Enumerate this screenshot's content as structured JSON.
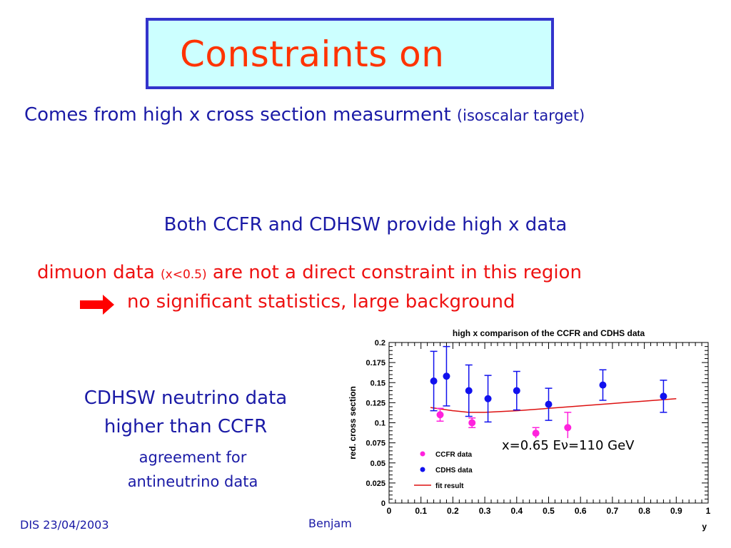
{
  "slide": {
    "title": "Constraints on",
    "subtitle_main": "Comes from high x cross section measurment ",
    "subtitle_small": "(isoscalar target)",
    "both_line": "Both CCFR and CDHSW provide high x data",
    "dimuon_pre": "dimuon data ",
    "dimuon_small": "(x<0.5)",
    "dimuon_post": " are not a direct constraint in this region",
    "no_significant": "no significant statistics, large background",
    "cdhsw_line1": "CDHSW neutrino data",
    "cdhsw_line2": "higher than CCFR",
    "agree_line1": "agreement for",
    "agree_line2": "antineutrino data",
    "footer_date": "DIS 23/04/2003",
    "footer_author": "Benjam",
    "colors": {
      "title": "#ff3300",
      "title_box_bg": "#ccffff",
      "title_box_border": "#3333cc",
      "text_blue": "#1a1aa6",
      "text_red": "#ee1111",
      "arrow": "#ff0000"
    }
  },
  "chart_data": {
    "type": "scatter",
    "title": "high x comparison of the CCFR and CDHS data",
    "xlabel": "y",
    "ylabel": "red. cross section",
    "xlim": [
      0,
      1
    ],
    "ylim": [
      0,
      0.2
    ],
    "x_ticks": [
      "0",
      "0.1",
      "0.2",
      "0.3",
      "0.4",
      "0.5",
      "0.6",
      "0.7",
      "0.8",
      "0.9",
      "1"
    ],
    "y_ticks": [
      "0",
      "0.025",
      "0.05",
      "0.075",
      "0.1",
      "0.125",
      "0.15",
      "0.175",
      "0.2"
    ],
    "annotation": "x=0.65   Eν=110 GeV",
    "legend": [
      "CCFR data",
      "CDHS data",
      "fit result"
    ],
    "series": [
      {
        "name": "CCFR data",
        "color": "#ff22dd",
        "points": [
          {
            "x": 0.16,
            "y": 0.11,
            "err": 0.008
          },
          {
            "x": 0.26,
            "y": 0.1,
            "err": 0.006
          },
          {
            "x": 0.46,
            "y": 0.087,
            "err": 0.007
          },
          {
            "x": 0.56,
            "y": 0.094,
            "err": 0.019
          }
        ]
      },
      {
        "name": "CDHS data",
        "color": "#1111ee",
        "points": [
          {
            "x": 0.14,
            "y": 0.152,
            "err": 0.037
          },
          {
            "x": 0.18,
            "y": 0.158,
            "err": 0.037
          },
          {
            "x": 0.25,
            "y": 0.14,
            "err": 0.032
          },
          {
            "x": 0.31,
            "y": 0.13,
            "err": 0.029
          },
          {
            "x": 0.4,
            "y": 0.14,
            "err": 0.024
          },
          {
            "x": 0.5,
            "y": 0.123,
            "err": 0.02
          },
          {
            "x": 0.67,
            "y": 0.147,
            "err": 0.019
          },
          {
            "x": 0.86,
            "y": 0.133,
            "err": 0.02
          }
        ]
      },
      {
        "name": "fit result",
        "color": "#dd1111",
        "line": [
          {
            "x": 0.13,
            "y": 0.119
          },
          {
            "x": 0.2,
            "y": 0.115
          },
          {
            "x": 0.25,
            "y": 0.113
          },
          {
            "x": 0.3,
            "y": 0.113
          },
          {
            "x": 0.4,
            "y": 0.115
          },
          {
            "x": 0.5,
            "y": 0.118
          },
          {
            "x": 0.6,
            "y": 0.121
          },
          {
            "x": 0.7,
            "y": 0.124
          },
          {
            "x": 0.8,
            "y": 0.127
          },
          {
            "x": 0.9,
            "y": 0.13
          }
        ]
      }
    ]
  }
}
